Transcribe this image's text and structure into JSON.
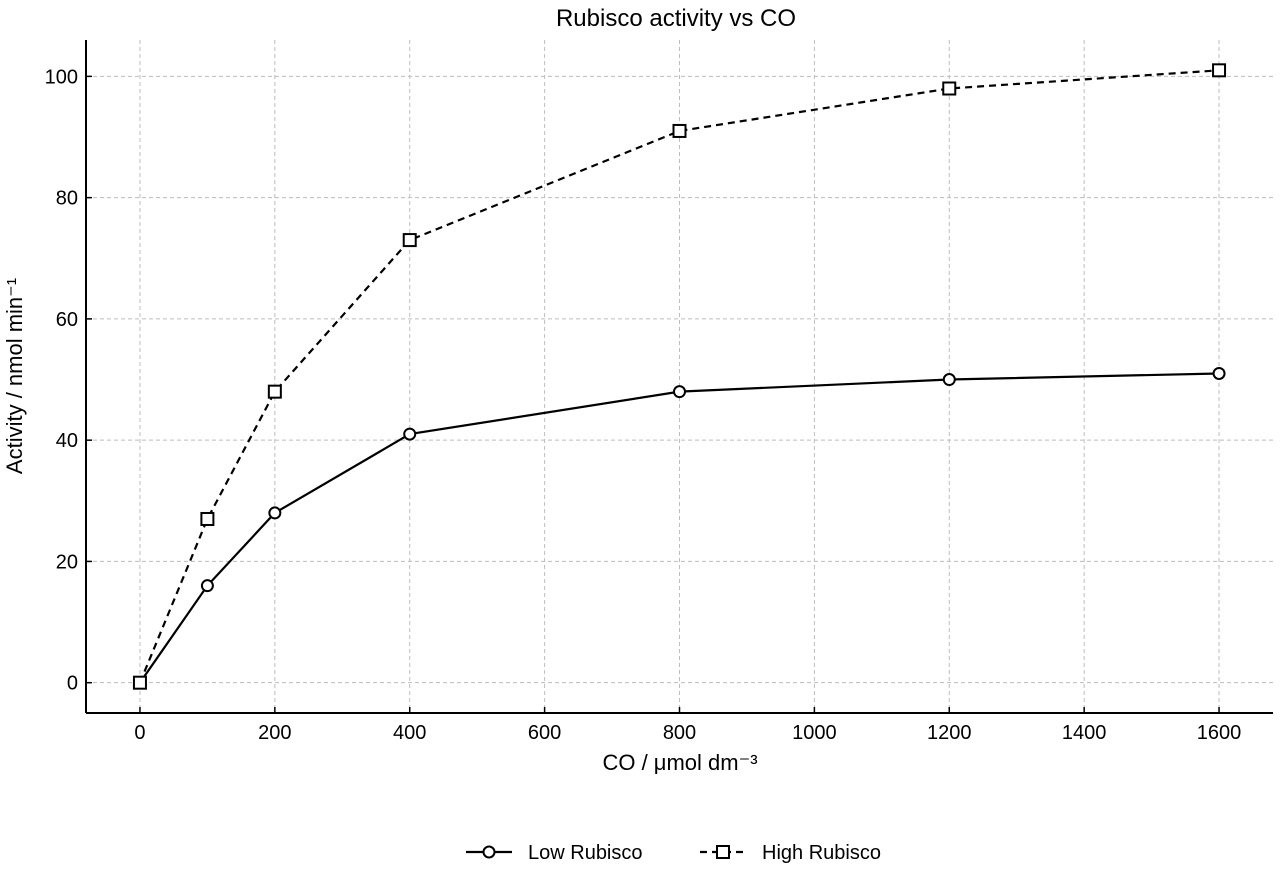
{
  "chart_data": {
    "type": "line",
    "title": "Rubisco activity vs CO",
    "xlabel": "CO  / μmol dm⁻³",
    "ylabel": "Activity / nmol min⁻¹",
    "xlim": [
      -80,
      1680
    ],
    "ylim": [
      -5,
      106
    ],
    "x_ticks": [
      0,
      200,
      400,
      600,
      800,
      1000,
      1200,
      1400,
      1600
    ],
    "y_ticks": [
      0,
      20,
      40,
      60,
      80,
      100
    ],
    "grid": true,
    "legend_position": "bottom-center",
    "series": [
      {
        "name": "Low Rubisco",
        "marker": "circle",
        "line_style": "solid",
        "color": "#000000",
        "x": [
          0,
          100,
          200,
          400,
          800,
          1200,
          1600
        ],
        "y": [
          0,
          16,
          28,
          41,
          48,
          50,
          51
        ]
      },
      {
        "name": "High Rubisco",
        "marker": "square",
        "line_style": "dashed",
        "color": "#000000",
        "x": [
          0,
          100,
          200,
          400,
          800,
          1200,
          1600
        ],
        "y": [
          0,
          27,
          48,
          73,
          91,
          98,
          101
        ]
      }
    ]
  }
}
